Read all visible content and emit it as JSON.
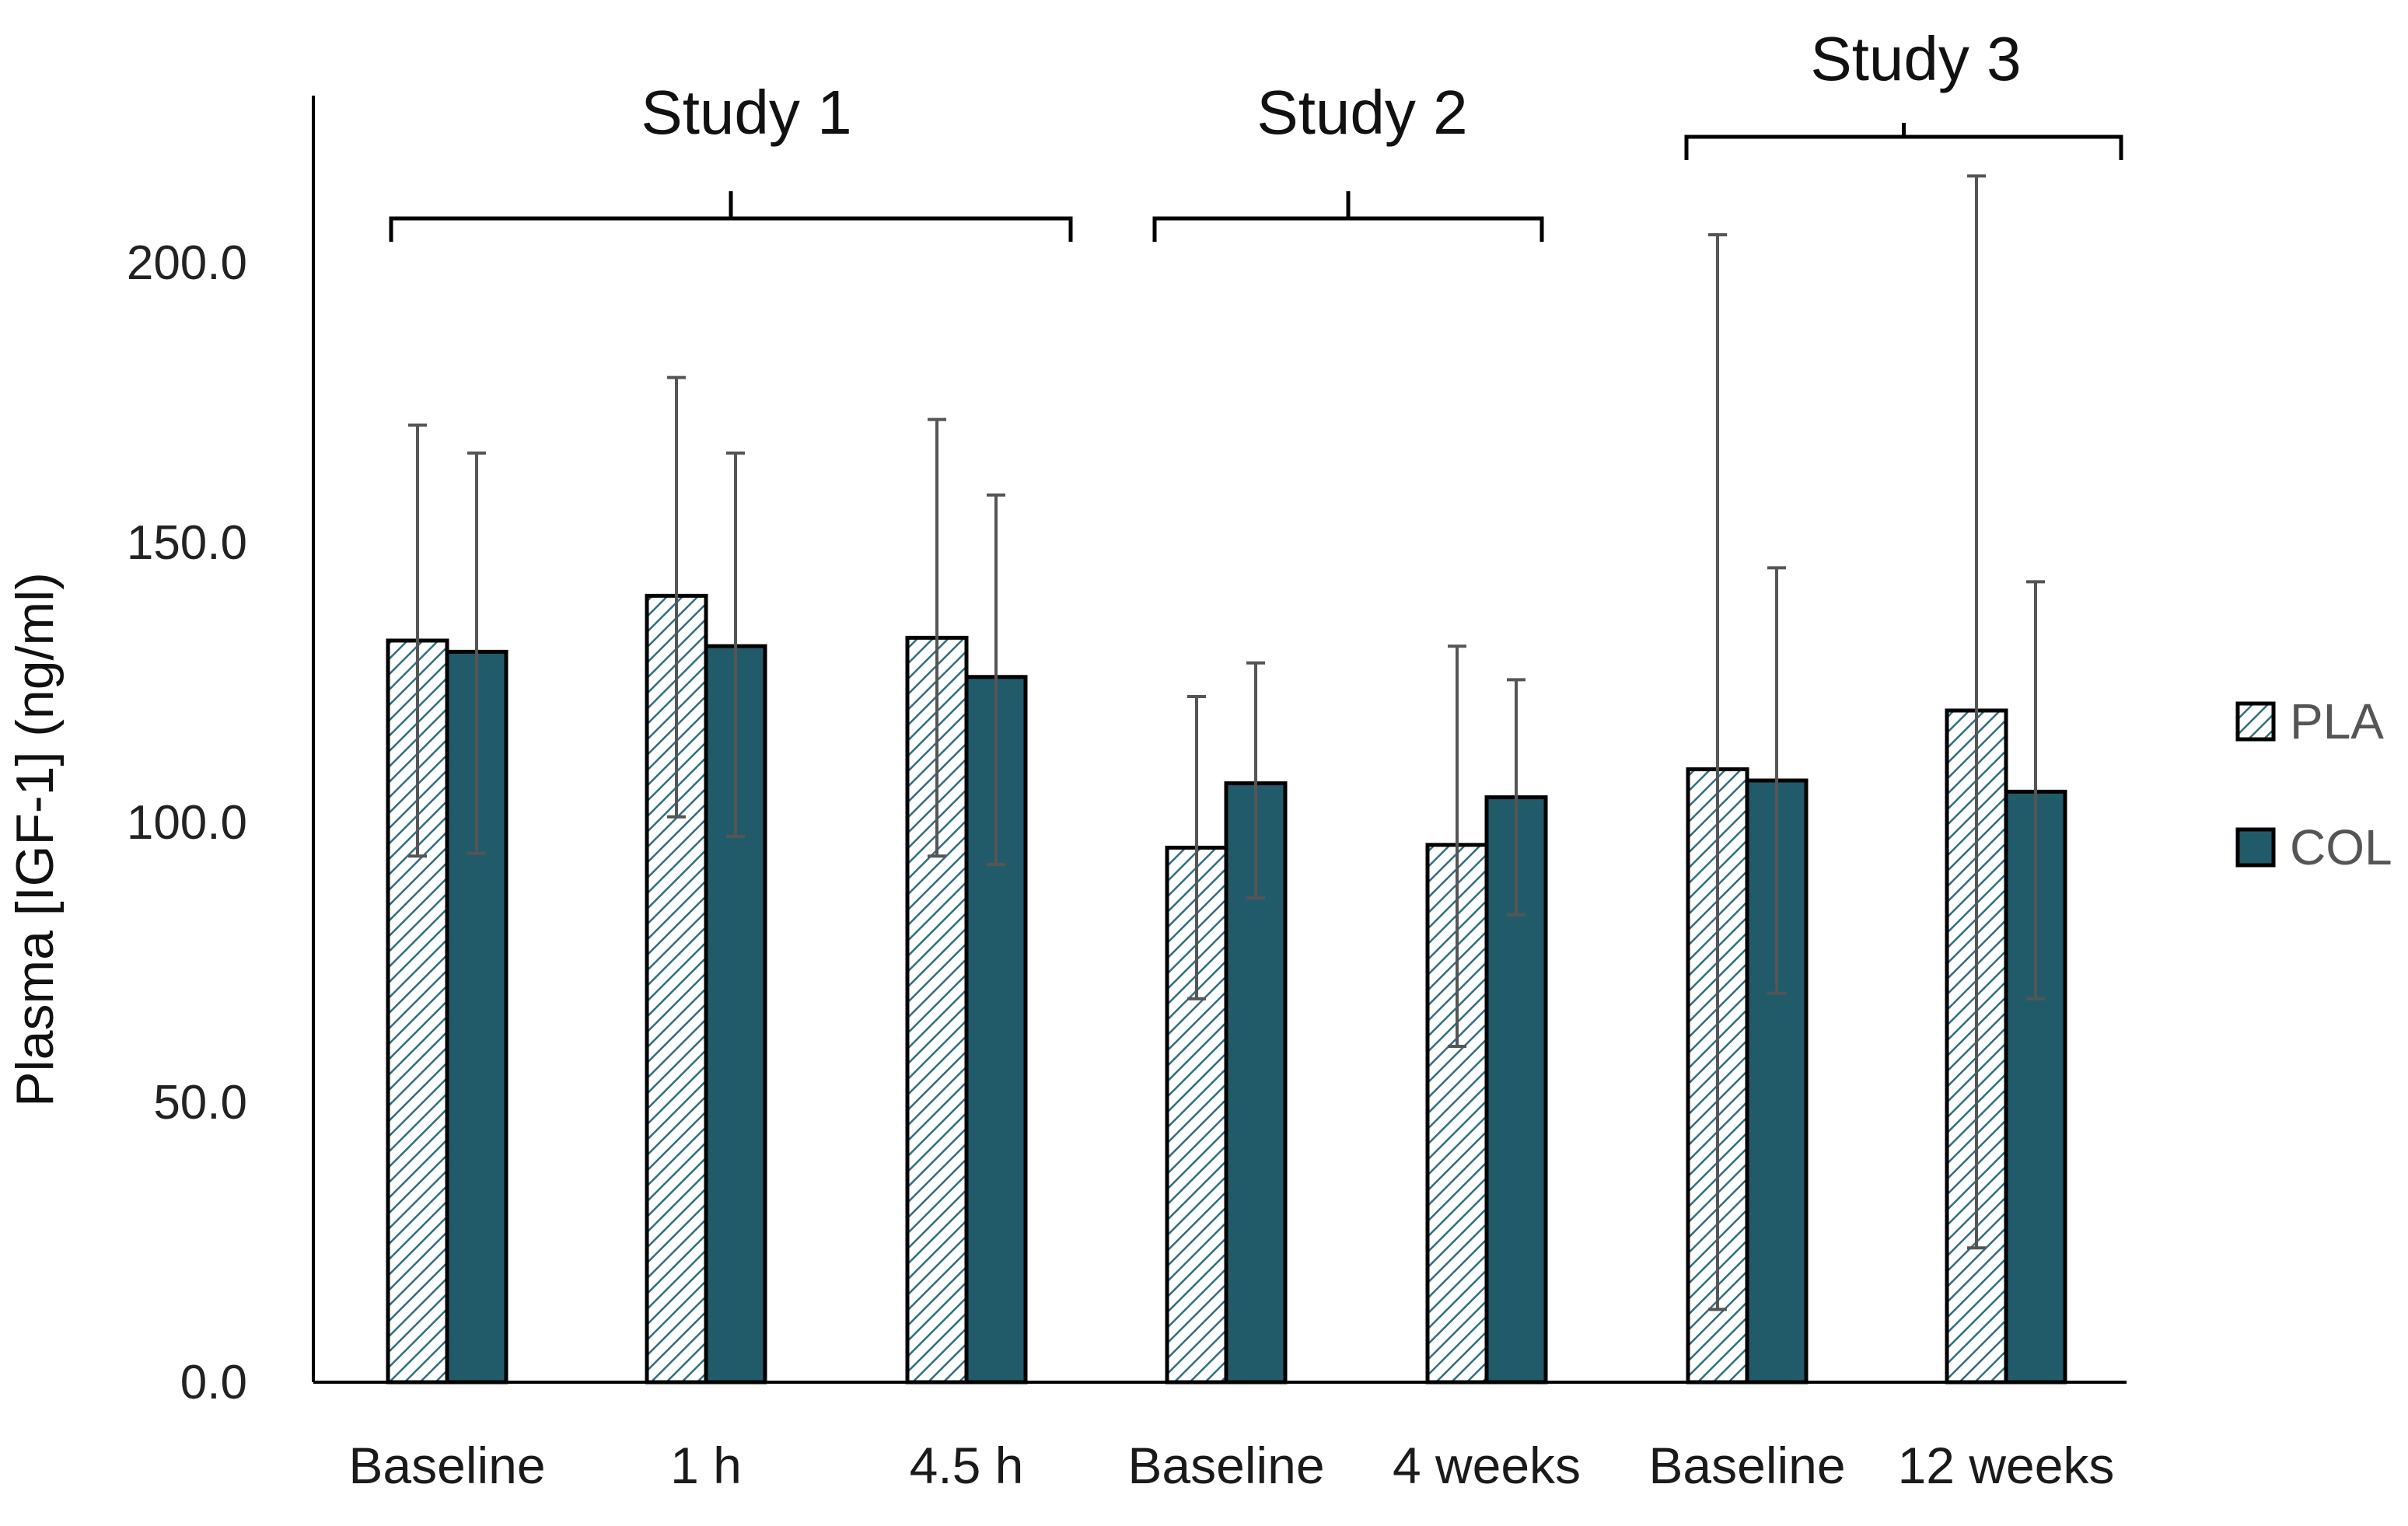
{
  "chart_data": {
    "type": "bar",
    "title": "",
    "xlabel": "",
    "ylabel": "Plasma [IGF-1] (ng/ml)",
    "ylim": [
      0,
      230
    ],
    "yticks": [
      0,
      50,
      100,
      150,
      200
    ],
    "ytick_labels": [
      "0.0",
      "50.0",
      "100.0",
      "150.0",
      "200.0"
    ],
    "categories": [
      "Baseline",
      "1 h",
      "4.5 h",
      "Baseline",
      "4 weeks",
      "Baseline",
      "12 weeks"
    ],
    "groups": [
      {
        "label": "Study 1",
        "start": 0,
        "end": 2
      },
      {
        "label": "Study 2",
        "start": 3,
        "end": 4
      },
      {
        "label": "Study 3",
        "start": 5,
        "end": 6
      }
    ],
    "series": [
      {
        "name": "PLA",
        "pattern": "hatched",
        "values": [
          132.5,
          140.5,
          133,
          95.5,
          96,
          109.5,
          120
        ],
        "err_low": [
          94,
          101,
          94,
          68.5,
          60,
          13,
          24
        ],
        "err_high": [
          171,
          179.5,
          172,
          122.5,
          131.5,
          205,
          215.5
        ]
      },
      {
        "name": "COL",
        "pattern": "solid",
        "values": [
          130.5,
          131.5,
          126,
          107,
          104.5,
          107.5,
          105.5
        ],
        "err_low": [
          94.5,
          97.5,
          92.5,
          86.5,
          83.5,
          69.5,
          68.5
        ],
        "err_high": [
          166,
          166,
          158.5,
          128.5,
          125.5,
          145.5,
          143
        ]
      }
    ],
    "legend": {
      "position": "right",
      "entries": [
        "PLA",
        "COL"
      ]
    }
  },
  "colors": {
    "col_fill": "#215b6a",
    "pla_fill": "#ffffff",
    "pla_hatch": "#2f6f80",
    "bar_edge": "#000000",
    "error_bar": "#555555",
    "axis": "#000000"
  }
}
